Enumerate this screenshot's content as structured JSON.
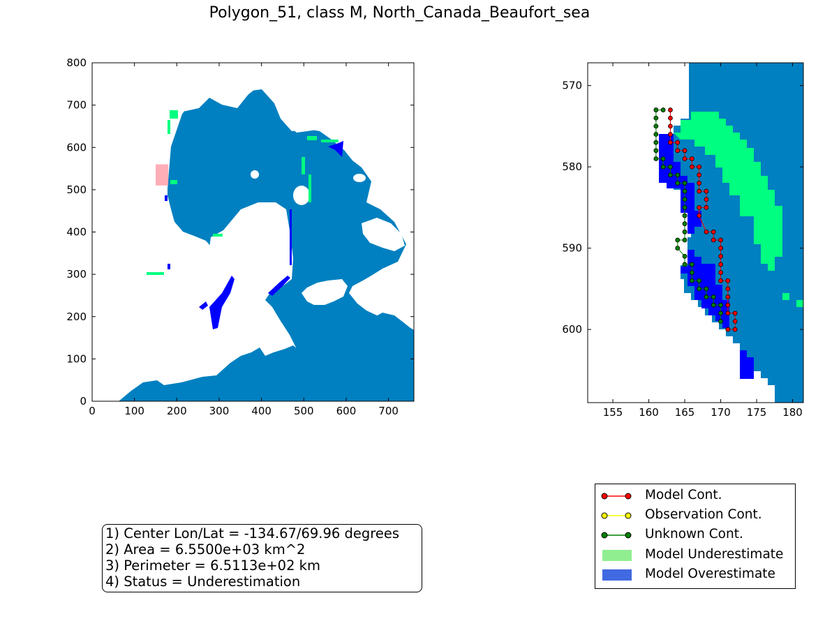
{
  "title": "Polygon_51, class M, North_Canada_Beaufort_sea",
  "colors": {
    "ocean": "#0080c0",
    "land": "#ffffff",
    "underestimate_cells": "#00ff80",
    "overestimate_cells": "#0000ff",
    "highlight_box": "#ff9aa6",
    "model_contour": "#ff0000",
    "observation_contour": "#ffff00",
    "unknown_contour": "#008000",
    "legend_underestimate": "#90ee90",
    "legend_overestimate": "#4169e1"
  },
  "chart_data": [
    {
      "type": "heatmap",
      "name": "overview-map",
      "xlim": [
        0,
        760
      ],
      "ylim": [
        0,
        800
      ],
      "x_ticks": [
        "0",
        "100",
        "200",
        "300",
        "400",
        "500",
        "600",
        "700"
      ],
      "y_ticks": [
        "0",
        "100",
        "200",
        "300",
        "400",
        "500",
        "600",
        "700",
        "800"
      ],
      "highlight_region": {
        "x": [
          150,
          180
        ],
        "y": [
          510,
          560
        ]
      }
    },
    {
      "type": "heatmap",
      "name": "zoom-map",
      "xlim": [
        151.5,
        181.5
      ],
      "ylim": [
        609,
        567.2
      ],
      "x_ticks": [
        "155",
        "160",
        "165",
        "170",
        "175",
        "180"
      ],
      "y_ticks": [
        "570",
        "580",
        "590",
        "600"
      ],
      "model_contour": [
        [
          163,
          573
        ],
        [
          163,
          574
        ],
        [
          163,
          575
        ],
        [
          163,
          576
        ],
        [
          163,
          577
        ],
        [
          164,
          577
        ],
        [
          164,
          578
        ],
        [
          165,
          578
        ],
        [
          165,
          579
        ],
        [
          166,
          579
        ],
        [
          166,
          580
        ],
        [
          167,
          580
        ],
        [
          167,
          581
        ],
        [
          167,
          582
        ],
        [
          167,
          583
        ],
        [
          168,
          583
        ],
        [
          168,
          584
        ],
        [
          168,
          585
        ],
        [
          167,
          585
        ],
        [
          167,
          586
        ],
        [
          168,
          588
        ],
        [
          169,
          588
        ],
        [
          169,
          589
        ],
        [
          170,
          589
        ],
        [
          170,
          590
        ],
        [
          170,
          591
        ],
        [
          170,
          592
        ],
        [
          170,
          593
        ],
        [
          170,
          594
        ],
        [
          171,
          594
        ],
        [
          171,
          595
        ],
        [
          171,
          596
        ],
        [
          171,
          597
        ],
        [
          171,
          598
        ],
        [
          172,
          598
        ],
        [
          172,
          599
        ],
        [
          172,
          600
        ],
        [
          171,
          600
        ]
      ],
      "unknown_contour": [
        [
          162,
          573
        ],
        [
          161,
          573
        ],
        [
          161,
          574
        ],
        [
          161,
          575
        ],
        [
          161,
          576
        ],
        [
          161,
          577
        ],
        [
          161,
          578
        ],
        [
          161,
          579
        ],
        [
          162,
          579
        ],
        [
          162,
          580
        ],
        [
          163,
          580
        ],
        [
          163,
          581
        ],
        [
          164,
          581
        ],
        [
          164,
          582
        ],
        [
          165,
          582
        ],
        [
          165,
          583
        ],
        [
          165,
          584
        ],
        [
          165,
          585
        ],
        [
          165,
          586
        ],
        [
          165,
          587
        ],
        [
          165,
          588
        ],
        [
          165,
          589
        ],
        [
          164,
          589
        ],
        [
          164,
          590
        ],
        [
          165,
          591
        ],
        [
          165,
          592
        ],
        [
          166,
          592
        ],
        [
          166,
          593
        ],
        [
          166,
          594
        ],
        [
          167,
          594
        ],
        [
          167,
          595
        ],
        [
          168,
          595
        ],
        [
          168,
          596
        ],
        [
          169,
          596
        ],
        [
          169,
          597
        ],
        [
          170,
          597
        ],
        [
          170,
          598
        ],
        [
          170,
          599
        ]
      ]
    }
  ],
  "info_box": {
    "line1": "1) Center Lon/Lat = -134.67/69.96 degrees",
    "line2": "2) Area = 6.5500e+03 km^2",
    "line3": "3) Perimeter = 6.5113e+02 km",
    "line4": "4) Status = Underestimation"
  },
  "legend": {
    "items": [
      {
        "label": "Model Cont.",
        "kind": "line",
        "color": "#ff0000"
      },
      {
        "label": "Observation Cont.",
        "kind": "line",
        "color": "#ffff00"
      },
      {
        "label": "Unknown Cont.",
        "kind": "line",
        "color": "#008000"
      },
      {
        "label": "Model Underestimate",
        "kind": "patch",
        "color": "#90ee90"
      },
      {
        "label": "Model Overestimate",
        "kind": "patch",
        "color": "#4169e1"
      }
    ]
  }
}
